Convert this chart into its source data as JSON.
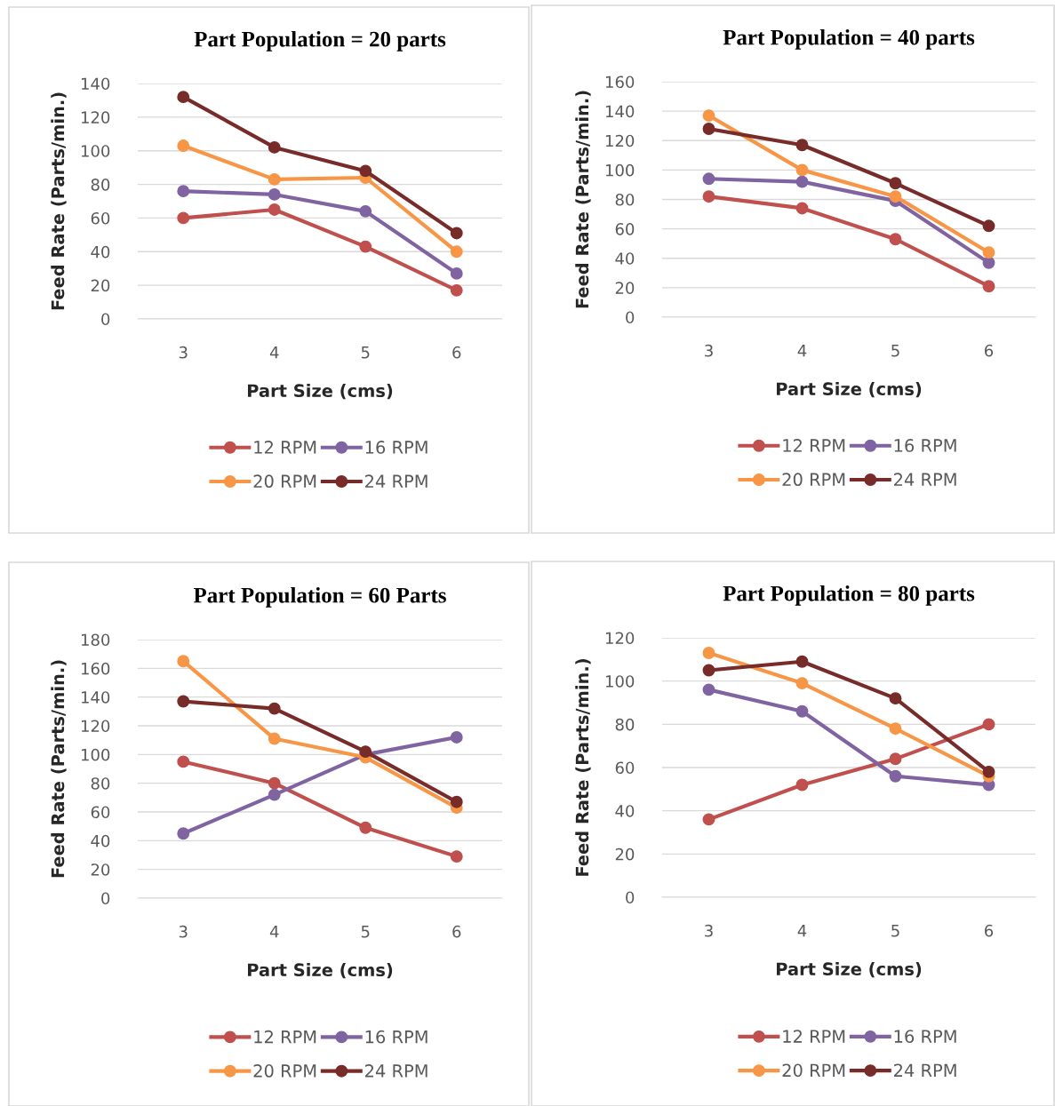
{
  "chart_data": [
    {
      "type": "line",
      "title": "Part Population = 20 parts",
      "xlabel": "Part Size (cms)",
      "ylabel": "Feed Rate (Parts/min.)",
      "categories": [
        "3",
        "4",
        "5",
        "6"
      ],
      "ylim": [
        0,
        140
      ],
      "yticks": [
        0,
        20,
        40,
        60,
        80,
        100,
        120,
        140
      ],
      "grid": "y",
      "legend": "bottom",
      "marker": "circle",
      "line_style": "solid",
      "series": [
        {
          "name": "12 RPM",
          "color": "#c0504d",
          "values": [
            60,
            65,
            43,
            17
          ]
        },
        {
          "name": "16 RPM",
          "color": "#8064a2",
          "values": [
            76,
            74,
            64,
            27
          ]
        },
        {
          "name": "20 RPM",
          "color": "#f79646",
          "values": [
            103,
            83,
            84,
            40
          ]
        },
        {
          "name": "24 RPM",
          "color": "#772c2a",
          "values": [
            132,
            102,
            88,
            51
          ]
        }
      ]
    },
    {
      "type": "line",
      "title": "Part Population = 40 parts",
      "xlabel": "Part Size (cms)",
      "ylabel": "Feed Rate (Parts/min.)",
      "categories": [
        "3",
        "4",
        "5",
        "6"
      ],
      "ylim": [
        0,
        160
      ],
      "yticks": [
        0,
        20,
        40,
        60,
        80,
        100,
        120,
        140,
        160
      ],
      "grid": "y",
      "legend": "bottom",
      "marker": "circle",
      "line_style": "solid",
      "series": [
        {
          "name": "12 RPM",
          "color": "#c0504d",
          "values": [
            82,
            74,
            53,
            21
          ]
        },
        {
          "name": "16 RPM",
          "color": "#8064a2",
          "values": [
            94,
            92,
            79,
            37
          ]
        },
        {
          "name": "20 RPM",
          "color": "#f79646",
          "values": [
            137,
            100,
            82,
            44
          ]
        },
        {
          "name": "24 RPM",
          "color": "#772c2a",
          "values": [
            128,
            117,
            91,
            62
          ]
        }
      ]
    },
    {
      "type": "line",
      "title": "Part Population = 60 Parts",
      "xlabel": "Part Size (cms)",
      "ylabel": "Feed Rate (Parts/min.)",
      "categories": [
        "3",
        "4",
        "5",
        "6"
      ],
      "ylim": [
        0,
        180
      ],
      "yticks": [
        0,
        20,
        40,
        60,
        80,
        100,
        120,
        140,
        160,
        180
      ],
      "grid": "y",
      "legend": "bottom",
      "marker": "circle",
      "line_style": "solid",
      "series": [
        {
          "name": "12 RPM",
          "color": "#c0504d",
          "values": [
            95,
            80,
            49,
            29
          ]
        },
        {
          "name": "16 RPM",
          "color": "#8064a2",
          "values": [
            45,
            72,
            100,
            112
          ]
        },
        {
          "name": "20 RPM",
          "color": "#f79646",
          "values": [
            165,
            111,
            98,
            63
          ]
        },
        {
          "name": "24 RPM",
          "color": "#772c2a",
          "values": [
            137,
            132,
            102,
            67
          ]
        }
      ]
    },
    {
      "type": "line",
      "title": "Part Population = 80 parts",
      "xlabel": "Part Size (cms)",
      "ylabel": "Feed Rate (Parts/min.)",
      "categories": [
        "3",
        "4",
        "5",
        "6"
      ],
      "ylim": [
        0,
        120
      ],
      "yticks": [
        0,
        20,
        40,
        60,
        80,
        100,
        120
      ],
      "grid": "y",
      "legend": "bottom",
      "marker": "circle",
      "line_style": "solid",
      "series": [
        {
          "name": "12 RPM",
          "color": "#c0504d",
          "values": [
            36,
            52,
            64,
            80
          ]
        },
        {
          "name": "16 RPM",
          "color": "#8064a2",
          "values": [
            96,
            86,
            56,
            52
          ]
        },
        {
          "name": "20 RPM",
          "color": "#f79646",
          "values": [
            113,
            99,
            78,
            56
          ]
        },
        {
          "name": "24 RPM",
          "color": "#772c2a",
          "values": [
            105,
            109,
            92,
            58
          ]
        }
      ]
    }
  ]
}
